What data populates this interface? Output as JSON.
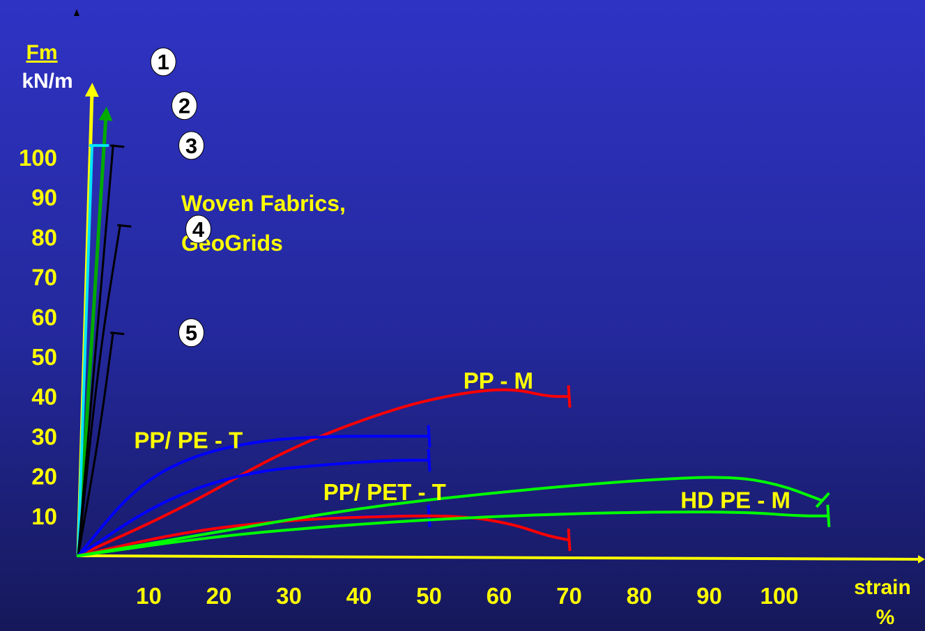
{
  "chart_data": {
    "type": "line",
    "title": "",
    "ylabel_top": "Fm",
    "ylabel_bottom": "kN/m",
    "xlabel_top": "strain",
    "xlabel_bottom": "%",
    "xlim": [
      0,
      120
    ],
    "ylim": [
      0,
      120
    ],
    "x_ticks": [
      10,
      20,
      30,
      40,
      50,
      60,
      70,
      80,
      90,
      100
    ],
    "y_ticks": [
      10,
      20,
      30,
      40,
      50,
      60,
      70,
      80,
      90,
      100
    ],
    "grid": false,
    "annotations": [
      {
        "text": "Woven Fabrics,",
        "line": 1
      },
      {
        "text": "GeoGrids",
        "line": 2
      }
    ],
    "markers": [
      {
        "text": "1",
        "x": 6,
        "y": 124
      },
      {
        "text": "2",
        "x": 9,
        "y": 113
      },
      {
        "text": "3",
        "x": 10,
        "y": 103
      },
      {
        "text": "4",
        "x": 11,
        "y": 82
      },
      {
        "text": "5",
        "x": 10,
        "y": 56
      }
    ],
    "series": [
      {
        "color": "#ffff00",
        "width": 5,
        "arrow": true,
        "end": "none",
        "points": [
          [
            0,
            0
          ],
          [
            2,
            117
          ]
        ]
      },
      {
        "color": "#00aa00",
        "width": 5,
        "arrow": true,
        "end": "none",
        "points": [
          [
            0,
            0
          ],
          [
            4,
            111
          ]
        ]
      },
      {
        "color": "#00e5ff",
        "width": 4,
        "arrow": false,
        "end": "hbar",
        "points": [
          [
            0,
            0
          ],
          [
            2,
            103
          ]
        ]
      },
      {
        "color": "#000000",
        "width": 3,
        "arrow": false,
        "end": "hook",
        "points": [
          [
            0,
            0
          ],
          [
            5,
            103
          ]
        ]
      },
      {
        "color": "#000000",
        "width": 3,
        "arrow": false,
        "end": "hook",
        "points": [
          [
            0,
            0
          ],
          [
            3,
            50
          ],
          [
            6,
            83
          ]
        ]
      },
      {
        "color": "#000000",
        "width": 3,
        "arrow": false,
        "end": "hook",
        "points": [
          [
            0,
            0
          ],
          [
            3,
            30
          ],
          [
            5,
            56
          ]
        ]
      },
      {
        "name": "PP - M",
        "color": "#ff0000",
        "width": 4,
        "arrow": false,
        "end": "vbar",
        "points": [
          [
            0,
            0
          ],
          [
            15,
            12
          ],
          [
            30,
            27
          ],
          [
            45,
            37
          ],
          [
            55,
            41
          ],
          [
            62,
            42
          ],
          [
            67,
            40
          ],
          [
            70,
            40
          ]
        ]
      },
      {
        "name": "PP/ PE - T",
        "color": "#0000ff",
        "width": 4,
        "arrow": false,
        "end": "vbar",
        "points": [
          [
            0,
            0
          ],
          [
            8,
            17
          ],
          [
            16,
            25
          ],
          [
            26,
            29
          ],
          [
            36,
            30
          ],
          [
            45,
            30
          ],
          [
            50,
            30
          ]
        ]
      },
      {
        "color": "#0000ff",
        "width": 4,
        "arrow": false,
        "end": "vbar",
        "points": [
          [
            0,
            0
          ],
          [
            12,
            14
          ],
          [
            24,
            21
          ],
          [
            36,
            23
          ],
          [
            45,
            24
          ],
          [
            50,
            24
          ]
        ]
      },
      {
        "name": "PP/ PET - T",
        "color": "#0000ff",
        "width": 4,
        "arrow": false,
        "end": "vbar",
        "points": [
          [
            0,
            0
          ],
          [
            15,
            6
          ],
          [
            30,
            9
          ],
          [
            42,
            10
          ],
          [
            50,
            10
          ]
        ]
      },
      {
        "color": "#ff0000",
        "width": 4,
        "arrow": false,
        "end": "vbar",
        "points": [
          [
            0,
            0
          ],
          [
            15,
            6
          ],
          [
            30,
            9
          ],
          [
            45,
            10
          ],
          [
            55,
            10
          ],
          [
            62,
            8
          ],
          [
            67,
            5
          ],
          [
            70,
            4
          ]
        ]
      },
      {
        "name": "HD PE - M",
        "color": "#00ff00",
        "width": 4,
        "arrow": false,
        "end": "slash",
        "points": [
          [
            0,
            0
          ],
          [
            20,
            6
          ],
          [
            40,
            12
          ],
          [
            60,
            16
          ],
          [
            80,
            19
          ],
          [
            93,
            20
          ],
          [
            100,
            18
          ],
          [
            106,
            14
          ]
        ]
      },
      {
        "color": "#00ff00",
        "width": 4,
        "arrow": false,
        "end": "vbar",
        "points": [
          [
            0,
            0
          ],
          [
            20,
            5
          ],
          [
            40,
            8
          ],
          [
            60,
            10
          ],
          [
            80,
            11
          ],
          [
            95,
            11
          ],
          [
            103,
            10
          ],
          [
            107,
            10
          ]
        ]
      }
    ]
  }
}
